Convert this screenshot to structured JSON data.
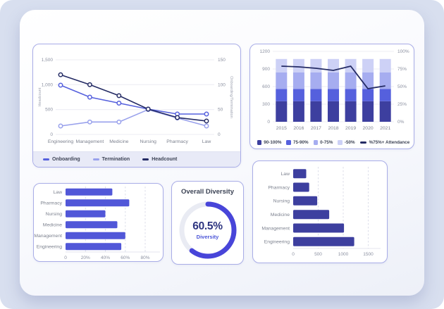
{
  "theme": {
    "page_background": "#d8dfef",
    "panel_background": "#ffffff",
    "card_border": "#a9ade7",
    "accent_indigo": "#4845d9",
    "dark_navy": "#242b64"
  },
  "chart_data": [
    {
      "id": "onboarding-termination-headcount",
      "type": "line",
      "categories": [
        "Engineering",
        "Management",
        "Medicine",
        "Nursing",
        "Pharmacy",
        "Law"
      ],
      "left_axis": {
        "label": "Headcount",
        "tick_labels": [
          "0",
          "500",
          "1,000",
          "1,500"
        ],
        "range": [
          0,
          1500
        ]
      },
      "right_axis": {
        "label": "Onboarding/Termination",
        "tick_labels": [
          "0",
          "50",
          "100",
          "150"
        ],
        "range": [
          0,
          150
        ]
      },
      "grid": true,
      "legend_position": "bottom",
      "series": [
        {
          "name": "Onboarding",
          "axis": "right",
          "color": "#5560dd",
          "values": [
            99,
            75,
            63,
            51,
            41,
            41
          ]
        },
        {
          "name": "Termination",
          "axis": "right",
          "color": "#99a1ec",
          "values": [
            17,
            25,
            25,
            50,
            33,
            17
          ]
        },
        {
          "name": "Headcount",
          "axis": "left",
          "color": "#242b64",
          "values": [
            1200,
            1000,
            780,
            510,
            340,
            270
          ]
        }
      ]
    },
    {
      "id": "attendance-by-year",
      "type": "bar",
      "stacked": true,
      "categories": [
        "2015",
        "2016",
        "2017",
        "2018",
        "2019",
        "2020",
        "2021"
      ],
      "left_axis": {
        "tick_labels": [
          "0",
          "300",
          "600",
          "900",
          "1200"
        ],
        "range": [
          0,
          1200
        ]
      },
      "right_axis": {
        "tick_labels": [
          "0%",
          "25%",
          "50%",
          "75%",
          "100%"
        ],
        "range": [
          0,
          100
        ]
      },
      "grid": true,
      "legend_position": "bottom",
      "series": [
        {
          "name": "90-100%",
          "color": "#3d3f9f",
          "values": [
            350,
            350,
            350,
            350,
            350,
            350,
            350
          ]
        },
        {
          "name": "75-90%",
          "color": "#5560dd",
          "values": [
            210,
            210,
            210,
            210,
            210,
            210,
            210
          ]
        },
        {
          "name": "0-75%",
          "color": "#a6adf0",
          "values": [
            280,
            280,
            280,
            280,
            280,
            280,
            280
          ]
        },
        {
          "name": "-50%",
          "color": "#cdd1f6",
          "values": [
            230,
            230,
            230,
            230,
            230,
            230,
            230
          ]
        }
      ],
      "line_series": {
        "name": "%75%+ Attendance",
        "axis": "right",
        "color": "#242b64",
        "values": [
          79,
          78,
          76,
          73,
          79,
          47,
          51
        ]
      }
    },
    {
      "id": "diversity-by-department",
      "type": "bar",
      "orientation": "horizontal",
      "categories": [
        "Law",
        "Pharmacy",
        "Nursing",
        "Medicine",
        "Management",
        "Engineering"
      ],
      "values": [
        47,
        64,
        40,
        52,
        60,
        56
      ],
      "color": "#5157d8",
      "x_ticks": [
        "0",
        "20%",
        "40%",
        "60%",
        "80%"
      ],
      "x_tick_values": [
        0,
        20,
        40,
        60,
        80
      ],
      "xlim": [
        0,
        92
      ],
      "grid": "dashed-vertical"
    },
    {
      "id": "overall-diversity",
      "type": "pie",
      "title": "Overall Diversity",
      "value": 60.5,
      "value_label": "60.5%",
      "sublabel": "Diversity",
      "ring_color": "#4845d9",
      "track_color": "#e9ebf3"
    },
    {
      "id": "headcount-by-department",
      "type": "bar",
      "orientation": "horizontal",
      "categories": [
        "Law",
        "Pharmacy",
        "Nursing",
        "Medicine",
        "Management",
        "Engineering"
      ],
      "values": [
        260,
        320,
        480,
        720,
        1015,
        1220
      ],
      "color": "#3d3f9f",
      "x_ticks": [
        "0",
        "500",
        "1000",
        "1500"
      ],
      "x_tick_values": [
        0,
        500,
        1000,
        1500
      ],
      "xlim": [
        0,
        1690
      ],
      "grid": "dashed-vertical"
    }
  ]
}
